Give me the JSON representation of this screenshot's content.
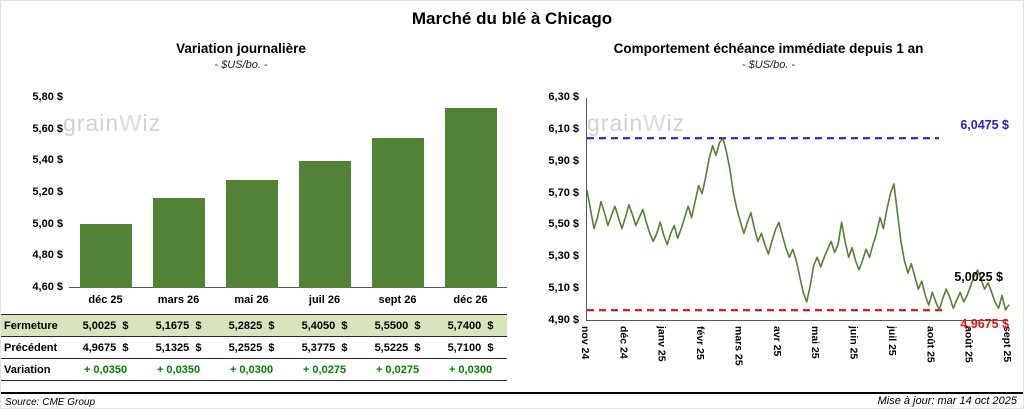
{
  "title": "Marché du blé à Chicago",
  "watermark": {
    "part1": "grain",
    "part2": "w",
    "part3": "iz"
  },
  "footer": {
    "source": "Source: CME Group",
    "updated": "Mise à jour: mar 14 oct 2025"
  },
  "chart_data": [
    {
      "type": "bar",
      "title": "Variation journalière",
      "subtitle": "- $US/bo. -",
      "categories": [
        "déc 25",
        "mars 26",
        "mai 26",
        "juil 26",
        "sept 26",
        "déc 26"
      ],
      "values": [
        5.0025,
        5.1675,
        5.2825,
        5.405,
        5.55,
        5.74
      ],
      "ylim": [
        4.6,
        5.8
      ],
      "ytick_step": 0.2,
      "ytick_labels": [
        "5,80 $",
        "5,60 $",
        "5,40 $",
        "5,20 $",
        "5,00 $",
        "4,80 $",
        "4,60 $"
      ],
      "bar_color": "#538135",
      "grid": false,
      "table": {
        "rows": [
          {
            "label": "Fermeture",
            "highlight": true,
            "variation": false,
            "values": [
              "5,0025  $",
              "5,1675  $",
              "5,2825  $",
              "5,4050  $",
              "5,5500  $",
              "5,7400  $"
            ]
          },
          {
            "label": "Précédent",
            "highlight": false,
            "variation": false,
            "values": [
              "4,9675  $",
              "5,1325  $",
              "5,2525  $",
              "5,3775  $",
              "5,5225  $",
              "5,7100  $"
            ]
          },
          {
            "label": "Variation",
            "highlight": false,
            "variation": true,
            "values": [
              "+ 0,0350",
              "+ 0,0350",
              "+ 0,0300",
              "+ 0,0275",
              "+ 0,0275",
              "+ 0,0300"
            ]
          }
        ]
      }
    },
    {
      "type": "line",
      "title": "Comportement échéance immédiate depuis 1 an",
      "subtitle": "- $US/bo. -",
      "ylim": [
        4.9,
        6.3
      ],
      "ytick_step": 0.2,
      "ytick_labels": [
        "6,30 $",
        "6,10 $",
        "5,90 $",
        "5,70 $",
        "5,50 $",
        "5,30 $",
        "5,10 $",
        "4,90 $"
      ],
      "x_labels": [
        "nov 24",
        "déc 24",
        "janv 25",
        "févr 25",
        "mars 25",
        "avr 25",
        "mai 25",
        "juin 25",
        "juil 25",
        "août 25",
        "août 25",
        "sept 25"
      ],
      "line_color": "#538135",
      "grid": false,
      "max_line": {
        "value": 6.0475,
        "label": "6,0475 $",
        "color": "#2222cc"
      },
      "min_line": {
        "value": 4.9675,
        "label": "4,9675 $",
        "color": "#e80f0f"
      },
      "last_label": {
        "value": 5.0025,
        "label": "5,0025 $",
        "color": "#000000"
      },
      "values": [
        5.72,
        5.6,
        5.48,
        5.55,
        5.65,
        5.58,
        5.5,
        5.56,
        5.62,
        5.55,
        5.48,
        5.55,
        5.63,
        5.57,
        5.5,
        5.55,
        5.6,
        5.52,
        5.45,
        5.4,
        5.45,
        5.52,
        5.44,
        5.38,
        5.45,
        5.5,
        5.42,
        5.48,
        5.55,
        5.62,
        5.55,
        5.65,
        5.75,
        5.7,
        5.8,
        5.92,
        6.0,
        5.94,
        6.02,
        6.0475,
        5.96,
        5.85,
        5.7,
        5.6,
        5.52,
        5.45,
        5.52,
        5.58,
        5.48,
        5.4,
        5.45,
        5.38,
        5.32,
        5.4,
        5.47,
        5.52,
        5.44,
        5.36,
        5.3,
        5.35,
        5.28,
        5.18,
        5.08,
        5.02,
        5.12,
        5.25,
        5.3,
        5.24,
        5.3,
        5.35,
        5.4,
        5.33,
        5.38,
        5.52,
        5.4,
        5.3,
        5.36,
        5.28,
        5.22,
        5.28,
        5.35,
        5.3,
        5.38,
        5.45,
        5.55,
        5.48,
        5.6,
        5.7,
        5.76,
        5.58,
        5.4,
        5.28,
        5.2,
        5.26,
        5.18,
        5.1,
        5.15,
        5.06,
        5.0,
        5.08,
        5.02,
        4.9675,
        5.04,
        5.1,
        5.05,
        4.98,
        5.03,
        5.08,
        5.02,
        5.06,
        5.12,
        5.18,
        5.22,
        5.16,
        5.1,
        5.14,
        5.08,
        5.02,
        4.98,
        5.06,
        4.97,
        5.0025
      ]
    }
  ]
}
